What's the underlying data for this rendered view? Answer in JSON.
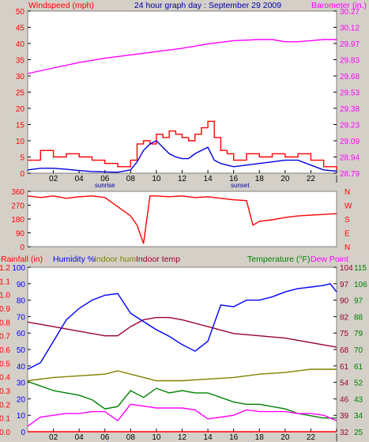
{
  "colors": {
    "wind": "#ff0000",
    "windavg": "#0000dd",
    "baro": "#ff00ff",
    "dir": "#ff0000",
    "humidity": "#0000ff",
    "indoorhum": "#808000",
    "indoortemp": "#990033",
    "temp": "#008000",
    "dew": "#ff00ff",
    "rain": "#ff0000",
    "title": "#0000aa"
  },
  "header1": {
    "left": "Windspeed (mph)",
    "center": "24 hour graph day : September 29 2009",
    "right": "Barometer (in.)"
  },
  "header3": {
    "rain": "Rainfall (in)",
    "humidity": "Humidity %",
    "indoorhum": "Indoor hum",
    "indoortemp": "Indoor temp",
    "temp": "Temperature (°F)",
    "dew": "Dew Point"
  },
  "chart_data": [
    {
      "type": "line",
      "x_ticks": [
        "02",
        "04",
        "06",
        "08",
        "10",
        "12",
        "14",
        "16",
        "18",
        "20",
        "22",
        "|"
      ],
      "x_markers": [
        "sunrise",
        "sunset"
      ],
      "y_left": {
        "label": "Windspeed (mph)",
        "ticks": [
          0,
          5,
          10,
          15,
          20,
          25,
          30,
          35,
          40,
          45,
          50
        ],
        "ylim": [
          0,
          50
        ]
      },
      "y_right": {
        "label": "Barometer (in.)",
        "ticks": [
          "28.79",
          "28.94",
          "29.09",
          "29.23",
          "29.38",
          "29.53",
          "29.68",
          "29.83",
          "29.97",
          "30.12",
          "30.27"
        ],
        "ylim": [
          28.79,
          30.27
        ]
      },
      "series": [
        {
          "name": "Windspeed (mph)",
          "axis": "left",
          "x": [
            0,
            1,
            2,
            3,
            4,
            5,
            6,
            7,
            8,
            8.5,
            9,
            9.5,
            10,
            10.5,
            11,
            11.5,
            12,
            12.5,
            13,
            13.5,
            14,
            14.5,
            15,
            15.5,
            16,
            17,
            18,
            19,
            20,
            21,
            22,
            23,
            24
          ],
          "values": [
            4,
            7,
            5,
            6,
            5,
            4,
            3,
            2,
            4,
            9,
            10,
            9,
            12,
            11,
            13,
            12,
            11,
            10,
            12,
            14,
            16,
            11,
            7,
            6,
            4,
            6,
            5,
            6,
            5,
            6,
            4,
            2,
            1
          ]
        },
        {
          "x": [
            0,
            1,
            2,
            3,
            4,
            5,
            6,
            7,
            8,
            8.5,
            9,
            9.5,
            10,
            10.5,
            11,
            11.5,
            12,
            12.5,
            13,
            13.5,
            14,
            14.5,
            15,
            15.5,
            16,
            17,
            18,
            19,
            20,
            21,
            22,
            23,
            24
          ],
          "values": [
            1,
            1.5,
            1.5,
            1.2,
            0.8,
            0.5,
            0.4,
            0.3,
            1,
            3.5,
            7,
            9,
            10,
            8,
            6,
            5,
            4.5,
            4.5,
            6,
            7,
            8,
            4,
            3,
            2.5,
            2,
            2.5,
            3,
            3.5,
            4,
            4,
            2.5,
            1,
            0.6
          ]
        },
        {
          "name": "Barometer (in.)",
          "axis": "right",
          "x": [
            0,
            2,
            4,
            6,
            8,
            10,
            12,
            14,
            16,
            18,
            19,
            20,
            21,
            22,
            23,
            24
          ],
          "values": [
            29.7,
            29.75,
            29.8,
            29.84,
            29.87,
            29.9,
            29.93,
            29.97,
            30.0,
            30.01,
            30.01,
            29.99,
            29.99,
            30.0,
            30.01,
            30.01
          ]
        }
      ]
    },
    {
      "type": "line",
      "y_left": {
        "ticks": [
          0,
          90,
          180,
          270,
          360
        ],
        "ylim": [
          0,
          360
        ]
      },
      "y_right": {
        "ticks": [
          "N",
          "W",
          "S",
          "E",
          "N"
        ]
      },
      "series": [
        {
          "x": [
            0,
            1,
            2,
            3,
            4,
            5,
            6,
            7,
            8,
            8.5,
            9,
            9.5,
            10,
            11,
            12,
            13,
            14,
            15,
            16,
            17,
            17.5,
            18,
            19,
            20,
            21,
            22,
            23,
            24
          ],
          "values": [
            330,
            320,
            330,
            315,
            325,
            330,
            320,
            260,
            200,
            140,
            20,
            330,
            330,
            325,
            330,
            320,
            325,
            315,
            305,
            300,
            140,
            165,
            175,
            190,
            200,
            205,
            210,
            215
          ]
        }
      ]
    },
    {
      "type": "line",
      "y_rain": {
        "label": "Rainfall (in)",
        "ticks": [
          "0.0",
          "0.1",
          "0.2",
          "0.3",
          "0.4",
          "0.5",
          "0.6",
          "0.7",
          "0.8",
          "0.9",
          "1.0",
          "1.1",
          "1.2"
        ],
        "ylim": [
          0,
          1.2
        ]
      },
      "y_hum": {
        "label": "Humidity %",
        "ticks": [
          0,
          10,
          20,
          30,
          40,
          50,
          60,
          70,
          80,
          90,
          100
        ],
        "ylim": [
          0,
          100
        ]
      },
      "y_right1": {
        "label": "Temperature (°F)",
        "ticks": [
          32,
          39,
          46,
          54,
          61,
          68,
          75,
          82,
          90,
          97,
          104
        ],
        "ylim": [
          32,
          104
        ]
      },
      "y_right2": {
        "ticks": [
          25,
          34,
          43,
          52,
          61,
          70,
          79,
          88,
          97,
          106,
          115
        ],
        "ylim": [
          25,
          115
        ]
      },
      "series": [
        {
          "name": "Humidity %",
          "axis": "hum",
          "x": [
            0,
            1,
            2,
            3,
            4,
            5,
            6,
            7,
            8,
            9,
            10,
            11,
            12,
            13,
            14,
            15,
            16,
            17,
            18,
            19,
            20,
            21,
            22,
            23,
            23.5,
            24
          ],
          "values": [
            38,
            42,
            55,
            68,
            75,
            80,
            83,
            84,
            72,
            67,
            62,
            58,
            53,
            49,
            55,
            77,
            76,
            80,
            80,
            82,
            85,
            87,
            88,
            89,
            90,
            85
          ]
        },
        {
          "name": "Indoor hum",
          "axis": "hum",
          "x": [
            0,
            2,
            4,
            6,
            7,
            8,
            10,
            12,
            14,
            16,
            18,
            20,
            22,
            24
          ],
          "values": [
            31,
            33,
            34,
            35,
            37,
            35,
            31,
            31,
            32,
            33,
            35,
            36,
            38,
            38
          ]
        },
        {
          "name": "Indoor temp",
          "axis": "right1",
          "x": [
            0,
            2,
            4,
            6,
            7,
            8,
            9,
            10,
            11,
            12,
            14,
            16,
            18,
            20,
            22,
            24
          ],
          "values": [
            80,
            78,
            76,
            74,
            74,
            78,
            81,
            82,
            82,
            81,
            78,
            75,
            74,
            73,
            71,
            69
          ]
        },
        {
          "name": "Temperature (°F)",
          "axis": "right1",
          "x": [
            0,
            1,
            2,
            3,
            4,
            5,
            6,
            7,
            8,
            9,
            10,
            11,
            12,
            13,
            14,
            15,
            16,
            17,
            18,
            19,
            20,
            21,
            22,
            23,
            24
          ],
          "values": [
            54,
            52,
            50,
            49,
            48,
            46,
            42,
            43,
            50,
            47,
            51,
            49,
            50,
            49,
            49,
            47,
            45,
            44,
            44,
            43,
            42,
            40,
            39,
            38,
            38
          ]
        },
        {
          "name": "Dew Point",
          "axis": "right2",
          "x": [
            0,
            1,
            2,
            3,
            4,
            5,
            6,
            7,
            8,
            9,
            10,
            11,
            12,
            13,
            14,
            15,
            16,
            17,
            18,
            19,
            20,
            21,
            22,
            23,
            24
          ],
          "values": [
            28,
            33,
            34,
            35,
            35,
            36,
            36,
            31,
            40,
            39,
            38,
            38,
            38,
            37,
            32,
            33,
            34,
            37,
            36,
            36,
            36,
            35,
            35,
            34,
            31
          ]
        },
        {
          "name": "Rainfall (in)",
          "axis": "rain",
          "x": [
            0,
            24
          ],
          "values": [
            0,
            0
          ]
        }
      ]
    }
  ]
}
